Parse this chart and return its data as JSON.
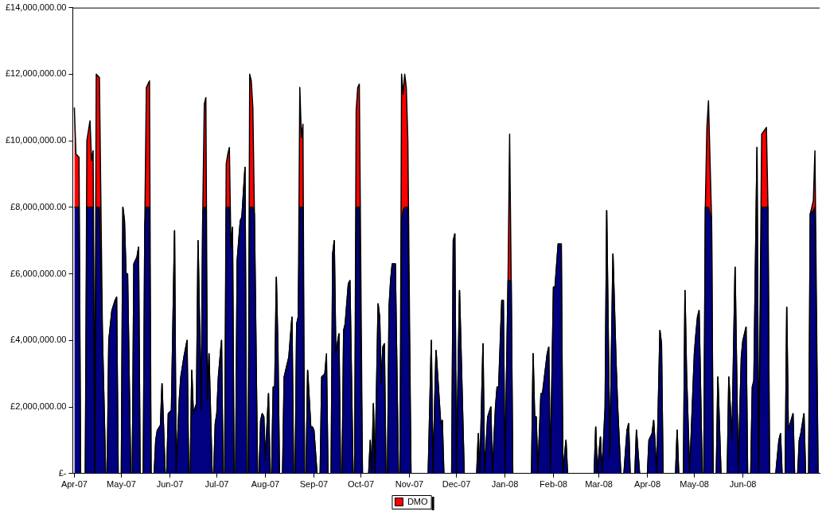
{
  "chart_data": {
    "type": "area",
    "stacked": true,
    "legend": "bottom",
    "marker": "none",
    "xlim": [
      "2007-03-31",
      "2008-07-20"
    ],
    "xticks": [
      {
        "value": "2007-04-01",
        "label": "Apr-07"
      },
      {
        "value": "2007-05-01",
        "label": "May-07"
      },
      {
        "value": "2007-06-01",
        "label": "Jun-07"
      },
      {
        "value": "2007-07-01",
        "label": "Jul-07"
      },
      {
        "value": "2007-08-01",
        "label": "Aug-07"
      },
      {
        "value": "2007-09-01",
        "label": "Sep-07"
      },
      {
        "value": "2007-10-01",
        "label": "Oct-07"
      },
      {
        "value": "2007-11-01",
        "label": "Nov-07"
      },
      {
        "value": "2007-12-01",
        "label": "Dec-07"
      },
      {
        "value": "2008-01-01",
        "label": "Jan-08"
      },
      {
        "value": "2008-02-01",
        "label": "Feb-08"
      },
      {
        "value": "2008-03-01",
        "label": "Mar-08"
      },
      {
        "value": "2008-04-01",
        "label": "Apr-08"
      },
      {
        "value": "2008-05-01",
        "label": "May-08"
      },
      {
        "value": "2008-06-01",
        "label": "Jun-08"
      }
    ],
    "ylim": [
      0,
      14000000
    ],
    "yticks": [
      {
        "value": 0,
        "label": "£-"
      },
      {
        "value": 2000000,
        "label": "£2,000,000.00"
      },
      {
        "value": 4000000,
        "label": "£4,000,000.00"
      },
      {
        "value": 6000000,
        "label": "£6,000,000.00"
      },
      {
        "value": 8000000,
        "label": "£8,000,000.00"
      },
      {
        "value": 10000000,
        "label": "£10,000,000.00"
      },
      {
        "value": 12000000,
        "label": "£12,000,000.00"
      },
      {
        "value": 14000000,
        "label": "£14,000,000.00"
      }
    ],
    "x": [
      "2007-04-01",
      "2007-04-02",
      "2007-04-04",
      "2007-04-05",
      "2007-04-08",
      "2007-04-09",
      "2007-04-11",
      "2007-04-12",
      "2007-04-13",
      "2007-04-14",
      "2007-04-15",
      "2007-04-17",
      "2007-04-19",
      "2007-04-21",
      "2007-04-22",
      "2007-04-23",
      "2007-04-25",
      "2007-04-27",
      "2007-04-28",
      "2007-04-29",
      "2007-05-01",
      "2007-05-02",
      "2007-05-03",
      "2007-05-04",
      "2007-05-05",
      "2007-05-07",
      "2007-05-08",
      "2007-05-09",
      "2007-05-11",
      "2007-05-12",
      "2007-05-13",
      "2007-05-15",
      "2007-05-16",
      "2007-05-17",
      "2007-05-19",
      "2007-05-20",
      "2007-05-22",
      "2007-05-23",
      "2007-05-24",
      "2007-05-26",
      "2007-05-27",
      "2007-05-29",
      "2007-05-30",
      "2007-05-31",
      "2007-06-02",
      "2007-06-04",
      "2007-06-05",
      "2007-06-07",
      "2007-06-08",
      "2007-06-10",
      "2007-06-12",
      "2007-06-13",
      "2007-06-14",
      "2007-06-15",
      "2007-06-16",
      "2007-06-18",
      "2007-06-19",
      "2007-06-21",
      "2007-06-22",
      "2007-06-23",
      "2007-06-24",
      "2007-06-25",
      "2007-06-26",
      "2007-06-28",
      "2007-06-29",
      "2007-06-30",
      "2007-07-01",
      "2007-07-02",
      "2007-07-04",
      "2007-07-05",
      "2007-07-06",
      "2007-07-07",
      "2007-07-08",
      "2007-07-09",
      "2007-07-10",
      "2007-07-11",
      "2007-07-12",
      "2007-07-13",
      "2007-07-14",
      "2007-07-16",
      "2007-07-17",
      "2007-07-19",
      "2007-07-20",
      "2007-07-21",
      "2007-07-22",
      "2007-07-23",
      "2007-07-24",
      "2007-07-25",
      "2007-07-27",
      "2007-07-28",
      "2007-07-29",
      "2007-07-30",
      "2007-07-31",
      "2007-08-01",
      "2007-08-03",
      "2007-08-04",
      "2007-08-05",
      "2007-08-06",
      "2007-08-07",
      "2007-08-08",
      "2007-08-09",
      "2007-08-10",
      "2007-08-12",
      "2007-08-13",
      "2007-08-16",
      "2007-08-18",
      "2007-08-19",
      "2007-08-20",
      "2007-08-21",
      "2007-08-22",
      "2007-08-23",
      "2007-08-24",
      "2007-08-25",
      "2007-08-26",
      "2007-08-27",
      "2007-08-28",
      "2007-08-30",
      "2007-08-31",
      "2007-09-01",
      "2007-09-03",
      "2007-09-05",
      "2007-09-06",
      "2007-09-08",
      "2007-09-09",
      "2007-09-10",
      "2007-09-12",
      "2007-09-13",
      "2007-09-14",
      "2007-09-15",
      "2007-09-17",
      "2007-09-18",
      "2007-09-19",
      "2007-09-20",
      "2007-09-21",
      "2007-09-23",
      "2007-09-24",
      "2007-09-26",
      "2007-09-27",
      "2007-09-28",
      "2007-09-29",
      "2007-09-30",
      "2007-10-02",
      "2007-10-06",
      "2007-10-07",
      "2007-10-08",
      "2007-10-09",
      "2007-10-10",
      "2007-10-12",
      "2007-10-13",
      "2007-10-14",
      "2007-10-15",
      "2007-10-16",
      "2007-10-17",
      "2007-10-18",
      "2007-10-19",
      "2007-10-20",
      "2007-10-21",
      "2007-10-23",
      "2007-10-25",
      "2007-10-26",
      "2007-10-27",
      "2007-10-28",
      "2007-10-29",
      "2007-10-30",
      "2007-10-31",
      "2007-11-02",
      "2007-11-13",
      "2007-11-15",
      "2007-11-16",
      "2007-11-18",
      "2007-11-21",
      "2007-11-22",
      "2007-11-23",
      "2007-11-28",
      "2007-11-29",
      "2007-11-30",
      "2007-12-01",
      "2007-12-03",
      "2007-12-06",
      "2007-12-14",
      "2007-12-15",
      "2007-12-16",
      "2007-12-18",
      "2007-12-19",
      "2007-12-21",
      "2007-12-23",
      "2007-12-24",
      "2007-12-26",
      "2007-12-27",
      "2007-12-28",
      "2007-12-30",
      "2007-12-31",
      "2008-01-01",
      "2008-01-03",
      "2008-01-04",
      "2008-01-05",
      "2008-01-06",
      "2008-01-18",
      "2008-01-19",
      "2008-01-20",
      "2008-01-21",
      "2008-01-22",
      "2008-01-24",
      "2008-01-25",
      "2008-01-28",
      "2008-01-29",
      "2008-01-30",
      "2008-02-01",
      "2008-02-02",
      "2008-02-04",
      "2008-02-06",
      "2008-02-07",
      "2008-02-09",
      "2008-02-10",
      "2008-02-27",
      "2008-02-28",
      "2008-02-29",
      "2008-03-02",
      "2008-03-03",
      "2008-03-05",
      "2008-03-06",
      "2008-03-08",
      "2008-03-10",
      "2008-03-12",
      "2008-03-13",
      "2008-03-15",
      "2008-03-17",
      "2008-03-19",
      "2008-03-20",
      "2008-03-21",
      "2008-03-24",
      "2008-03-25",
      "2008-03-27",
      "2008-04-01",
      "2008-04-02",
      "2008-04-04",
      "2008-04-05",
      "2008-04-07",
      "2008-04-09",
      "2008-04-10",
      "2008-04-11",
      "2008-04-19",
      "2008-04-20",
      "2008-04-21",
      "2008-04-24",
      "2008-04-25",
      "2008-04-26",
      "2008-04-28",
      "2008-05-01",
      "2008-05-02",
      "2008-05-03",
      "2008-05-04",
      "2008-05-06",
      "2008-05-07",
      "2008-05-08",
      "2008-05-09",
      "2008-05-10",
      "2008-05-12",
      "2008-05-13",
      "2008-05-15",
      "2008-05-16",
      "2008-05-18",
      "2008-05-22",
      "2008-05-23",
      "2008-05-25",
      "2008-05-27",
      "2008-05-29",
      "2008-05-31",
      "2008-06-01",
      "2008-06-03",
      "2008-06-04",
      "2008-06-06",
      "2008-06-07",
      "2008-06-08",
      "2008-06-10",
      "2008-06-11",
      "2008-06-13",
      "2008-06-16",
      "2008-06-17",
      "2008-06-18",
      "2008-06-22",
      "2008-06-24",
      "2008-06-25",
      "2008-06-26",
      "2008-06-28",
      "2008-06-29",
      "2008-06-30",
      "2008-07-03",
      "2008-07-04",
      "2008-07-06",
      "2008-07-07",
      "2008-07-08",
      "2008-07-10",
      "2008-07-11",
      "2008-07-13",
      "2008-07-14",
      "2008-07-16",
      "2008-07-17",
      "2008-07-19"
    ],
    "series": [
      {
        "color": "#000080",
        "values": [
          8000000,
          8000000,
          8000000,
          0,
          0,
          8000000,
          8000000,
          8000000,
          8000000,
          0,
          8000000,
          8000000,
          4000000,
          0,
          0,
          4000000,
          4900000,
          5200000,
          5300000,
          0,
          0,
          8000000,
          7600000,
          6000000,
          6000000,
          0,
          0,
          6300000,
          6500000,
          6800000,
          0,
          0,
          7500000,
          8000000,
          8000000,
          0,
          0,
          1000000,
          1300000,
          1450000,
          2700000,
          0,
          0,
          1800000,
          1900000,
          7300000,
          0,
          2200000,
          2900000,
          3500000,
          4000000,
          0,
          0,
          3100000,
          1800000,
          2100000,
          7000000,
          1900000,
          7800000,
          8000000,
          8000000,
          2200000,
          3600000,
          0,
          0,
          1500000,
          1800000,
          2900000,
          4000000,
          0,
          0,
          8000000,
          8000000,
          8000000,
          6800000,
          7400000,
          0,
          0,
          6400000,
          7600000,
          7700000,
          9200000,
          0,
          0,
          8000000,
          8000000,
          8000000,
          7800000,
          0,
          0,
          1600000,
          1800000,
          1700000,
          400000,
          2400000,
          0,
          0,
          2600000,
          2600000,
          5900000,
          3800000,
          0,
          0,
          2900000,
          3500000,
          4700000,
          0,
          0,
          4500000,
          4700000,
          8000000,
          8000000,
          8000000,
          0,
          0,
          3100000,
          1400000,
          1400000,
          1300000,
          0,
          0,
          2900000,
          3000000,
          3500000,
          0,
          0,
          6600000,
          7000000,
          3600000,
          4200000,
          0,
          0,
          4300000,
          4500000,
          5700000,
          5800000,
          0,
          0,
          8000000,
          8000000,
          8000000,
          0,
          0,
          1000000,
          0,
          2100000,
          0,
          5100000,
          4700000,
          2700000,
          3800000,
          3900000,
          0,
          0,
          5000000,
          5800000,
          6300000,
          6300000,
          0,
          0,
          7600000,
          7900000,
          8000000,
          8000000,
          8000000,
          0,
          0,
          4000000,
          0,
          3700000,
          1500000,
          1600000,
          0,
          0,
          7000000,
          7200000,
          0,
          5500000,
          0,
          0,
          1200000,
          0,
          3900000,
          0,
          1700000,
          2000000,
          0,
          2000000,
          2600000,
          2600000,
          5200000,
          5200000,
          0,
          5800000,
          5800000,
          5800000,
          0,
          0,
          3600000,
          1700000,
          1700000,
          0,
          2400000,
          2400000,
          3600000,
          3800000,
          0,
          5600000,
          5600000,
          6900000,
          6900000,
          0,
          1000000,
          0,
          0,
          1400000,
          0,
          1100000,
          0,
          2000000,
          7900000,
          500000,
          6600000,
          3300000,
          2000000,
          0,
          0,
          1300000,
          1500000,
          0,
          0,
          1300000,
          0,
          0,
          1000000,
          1200000,
          1600000,
          0,
          4300000,
          3900000,
          0,
          0,
          1300000,
          0,
          0,
          5500000,
          3000000,
          0,
          3600000,
          4200000,
          4700000,
          4900000,
          0,
          0,
          8000000,
          8000000,
          8000000,
          7600000,
          0,
          0,
          2900000,
          0,
          0,
          2900000,
          1000000,
          6200000,
          0,
          3500000,
          4000000,
          4400000,
          0,
          0,
          2600000,
          2800000,
          9800000,
          0,
          8000000,
          8000000,
          8000000,
          0,
          0,
          1000000,
          1200000,
          0,
          0,
          5000000,
          1300000,
          1800000,
          0,
          0,
          1000000,
          1200000,
          1800000,
          0,
          0,
          7800000,
          7900000,
          8000000,
          0
        ]
      },
      {
        "name": "DMO",
        "color": "#ff0000",
        "values": [
          3000000,
          1600000,
          1500000,
          0,
          0,
          2000000,
          2600000,
          1400000,
          1700000,
          0,
          4000000,
          3900000,
          0,
          0,
          0,
          0,
          0,
          0,
          0,
          0,
          0,
          0,
          0,
          0,
          0,
          0,
          0,
          0,
          0,
          0,
          0,
          0,
          0,
          3600000,
          3800000,
          0,
          0,
          0,
          0,
          0,
          0,
          0,
          0,
          0,
          0,
          0,
          0,
          0,
          0,
          0,
          0,
          0,
          0,
          0,
          0,
          0,
          0,
          0,
          0,
          3100000,
          3300000,
          0,
          0,
          0,
          0,
          0,
          0,
          0,
          0,
          0,
          0,
          1300000,
          1600000,
          1800000,
          0,
          0,
          0,
          0,
          0,
          0,
          0,
          0,
          0,
          0,
          4000000,
          3800000,
          3000000,
          0,
          0,
          0,
          0,
          0,
          0,
          0,
          0,
          0,
          0,
          0,
          0,
          0,
          0,
          0,
          0,
          0,
          0,
          0,
          0,
          0,
          0,
          0,
          3600000,
          2100000,
          2500000,
          0,
          0,
          0,
          0,
          0,
          0,
          0,
          0,
          0,
          0,
          100000,
          0,
          0,
          0,
          0,
          0,
          0,
          0,
          0,
          0,
          0,
          0,
          0,
          0,
          0,
          2900000,
          3600000,
          3700000,
          0,
          0,
          0,
          0,
          0,
          0,
          0,
          0,
          0,
          0,
          0,
          0,
          0,
          0,
          0,
          0,
          0,
          0,
          0,
          4400000,
          3500000,
          4000000,
          3600000,
          2000000,
          0,
          0,
          0,
          0,
          0,
          0,
          0,
          0,
          0,
          0,
          0,
          0,
          0,
          0,
          0,
          0,
          0,
          0,
          0,
          0,
          0,
          0,
          0,
          0,
          0,
          0,
          0,
          0,
          0,
          4400000,
          0,
          0,
          0,
          0,
          0,
          0,
          0,
          0,
          0,
          0,
          0,
          0,
          0,
          0,
          0,
          0,
          0,
          0,
          0,
          0,
          0,
          0,
          0,
          0,
          0,
          0,
          0,
          0,
          0,
          0,
          0,
          0,
          0,
          0,
          0,
          0,
          0,
          0,
          0,
          0,
          0,
          0,
          0,
          0,
          0,
          0,
          0,
          0,
          0,
          0,
          0,
          0,
          0,
          0,
          0,
          0,
          0,
          0,
          0,
          0,
          2400000,
          3200000,
          0,
          0,
          0,
          0,
          0,
          0,
          0,
          0,
          0,
          0,
          0,
          0,
          0,
          0,
          0,
          0,
          0,
          0,
          0,
          2200000,
          2400000,
          0,
          0,
          0,
          0,
          0,
          0,
          0,
          0,
          0,
          0,
          0,
          0,
          0,
          0,
          0,
          0,
          0,
          0,
          300000,
          1700000,
          0
        ]
      }
    ]
  }
}
